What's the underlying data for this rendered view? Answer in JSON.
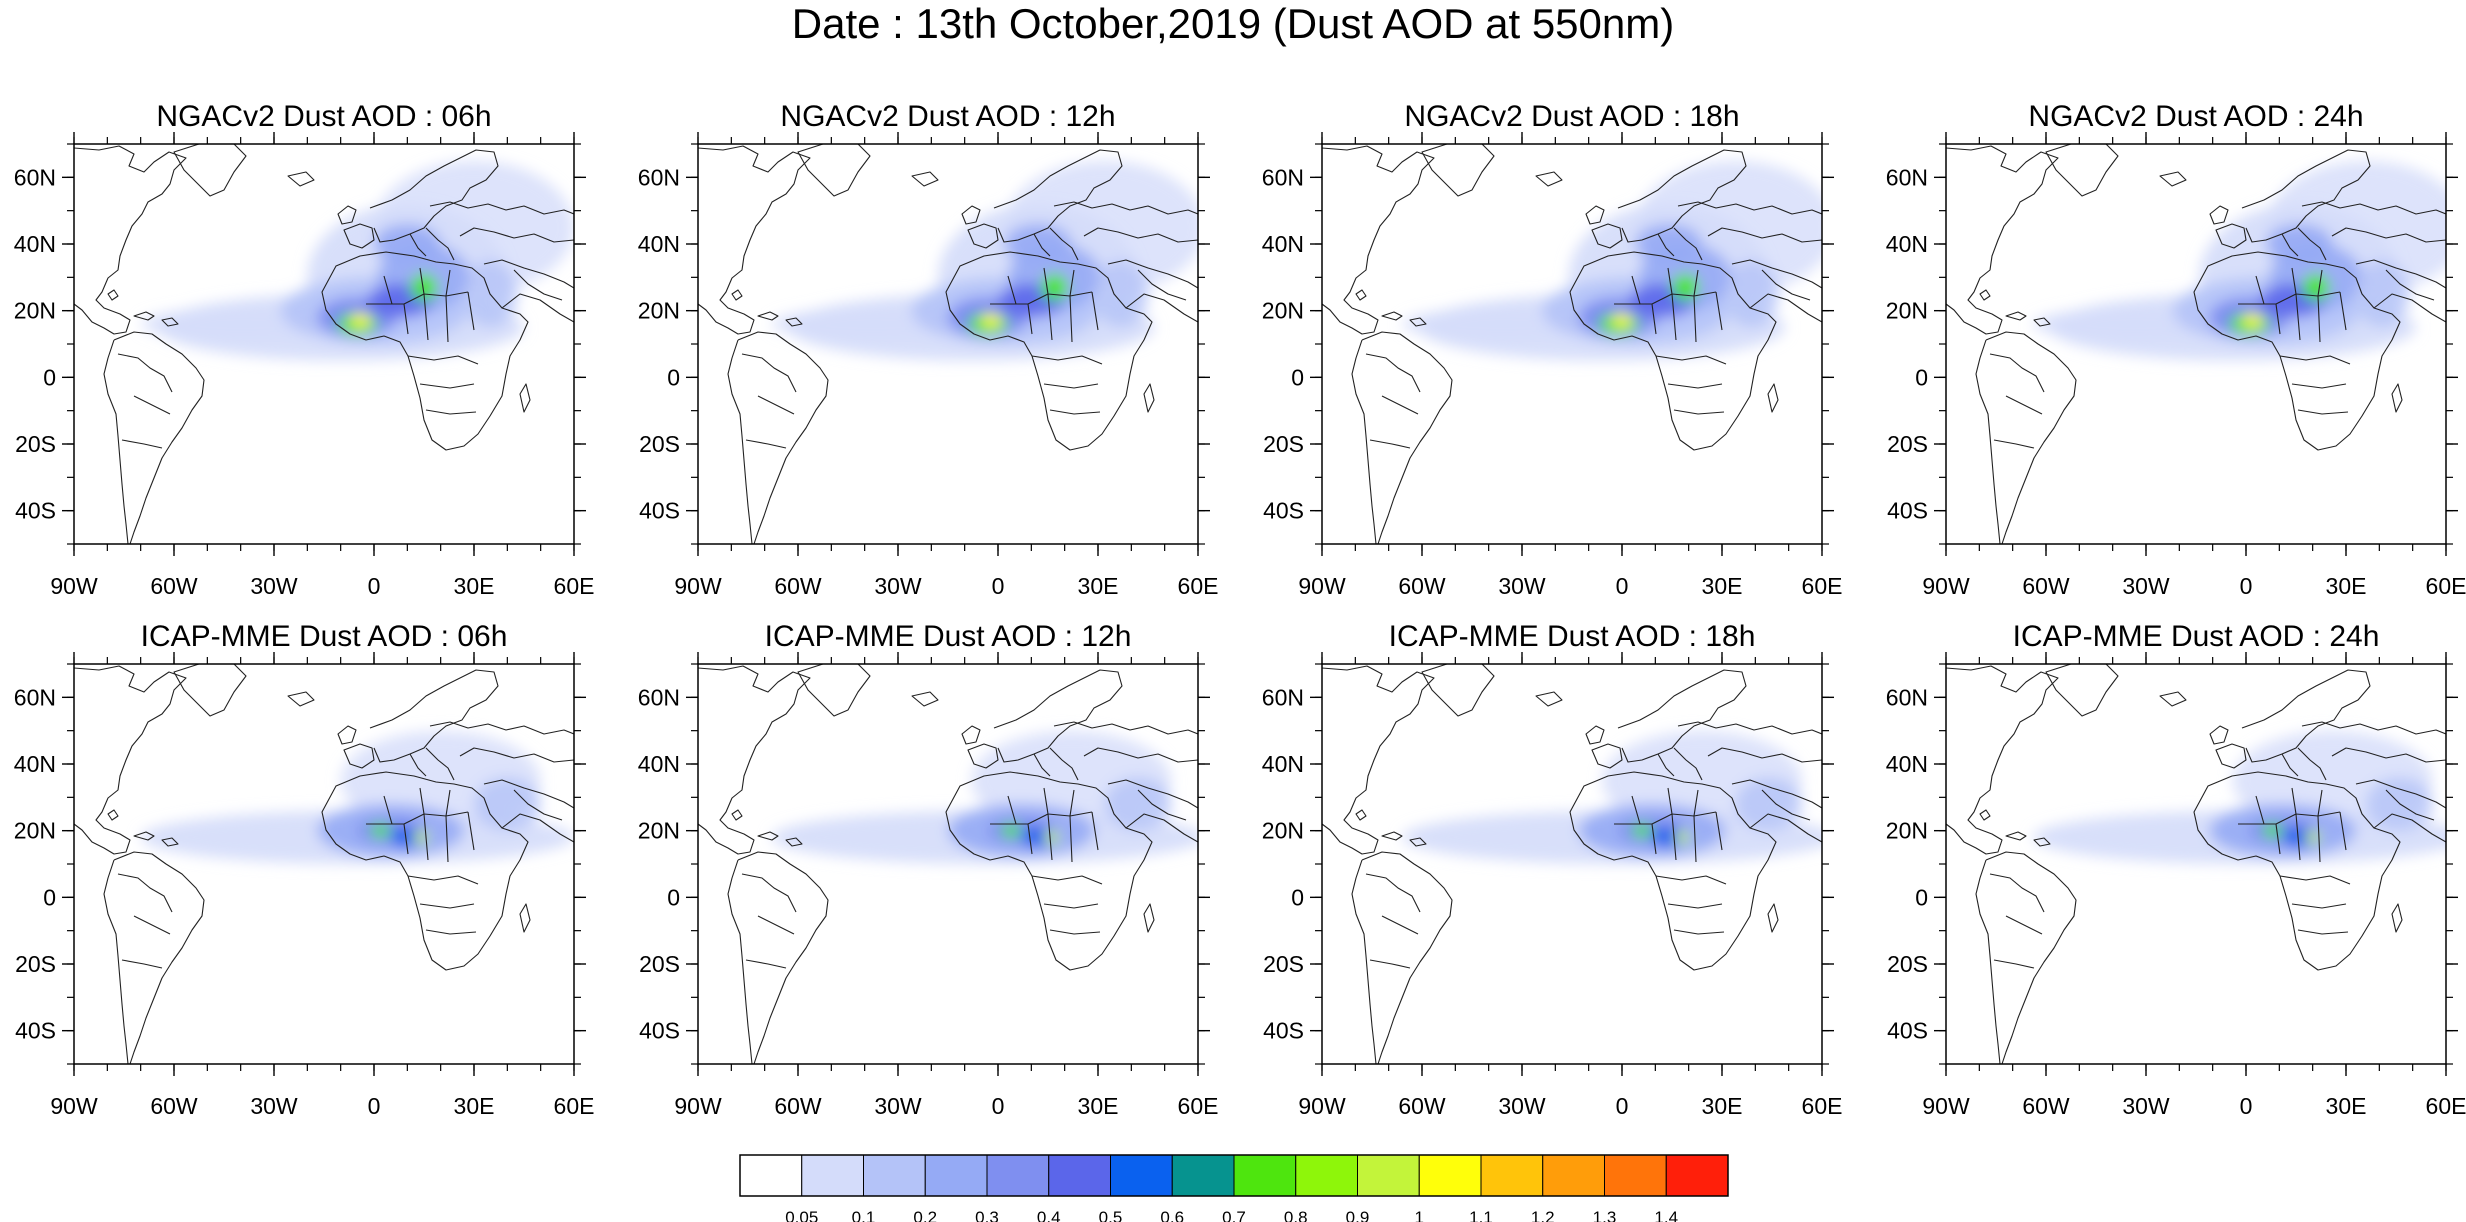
{
  "title": "Date : 13th October,2019 (Dust AOD at 550nm)",
  "panels": [
    {
      "model": "NGACv2",
      "title": "NGACv2 Dust AOD : 06h"
    },
    {
      "model": "NGACv2",
      "title": "NGACv2 Dust AOD : 12h"
    },
    {
      "model": "NGACv2",
      "title": "NGACv2 Dust AOD : 18h"
    },
    {
      "model": "NGACv2",
      "title": "NGACv2 Dust AOD : 24h"
    },
    {
      "model": "ICAP-MME",
      "title": "ICAP-MME Dust AOD : 06h"
    },
    {
      "model": "ICAP-MME",
      "title": "ICAP-MME Dust AOD : 12h"
    },
    {
      "model": "ICAP-MME",
      "title": "ICAP-MME Dust AOD : 18h"
    },
    {
      "model": "ICAP-MME",
      "title": "ICAP-MME Dust AOD : 24h"
    }
  ],
  "map_extent": {
    "lon": [
      -90,
      60
    ],
    "lat": [
      -50,
      70
    ]
  },
  "lat_ticks": [
    {
      "value": 60,
      "label": "60N"
    },
    {
      "value": 40,
      "label": "40N"
    },
    {
      "value": 20,
      "label": "20N"
    },
    {
      "value": 0,
      "label": "0"
    },
    {
      "value": -20,
      "label": "20S"
    },
    {
      "value": -40,
      "label": "40S"
    }
  ],
  "lon_ticks": [
    {
      "value": -90,
      "label": "90W"
    },
    {
      "value": -60,
      "label": "60W"
    },
    {
      "value": -30,
      "label": "30W"
    },
    {
      "value": 0,
      "label": "0"
    },
    {
      "value": 30,
      "label": "30E"
    },
    {
      "value": 60,
      "label": "60E"
    }
  ],
  "colorbar": {
    "colors": [
      "#ffffff",
      "#d4dcfa",
      "#b4c3f8",
      "#95aaf5",
      "#7f8ff0",
      "#5b66ea",
      "#0a61ef",
      "#06938f",
      "#4ee50e",
      "#8ef60a",
      "#c3f43a",
      "#ffff0a",
      "#ffc40a",
      "#ff9d0a",
      "#ff740a",
      "#ff1f0a"
    ],
    "labels": [
      "0.05",
      "0.1",
      "0.2",
      "0.3",
      "0.4",
      "0.5",
      "0.6",
      "0.7",
      "0.8",
      "0.9",
      "1",
      "1.1",
      "1.2",
      "1.3",
      "1.4"
    ]
  }
}
